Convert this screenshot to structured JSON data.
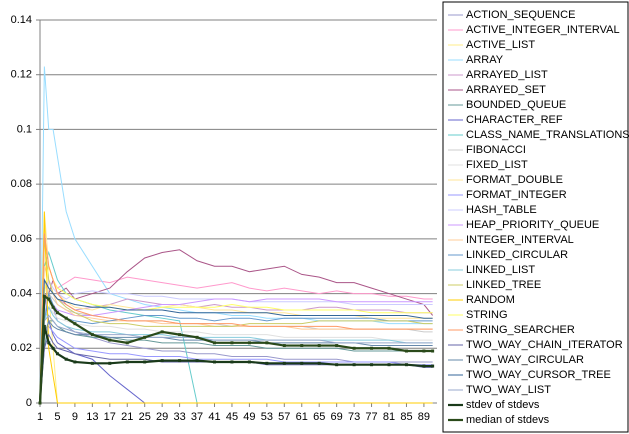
{
  "chart_data": {
    "type": "line",
    "x": [
      1,
      2,
      3,
      4,
      5,
      7,
      9,
      13,
      17,
      21,
      25,
      29,
      33,
      37,
      41,
      45,
      49,
      53,
      57,
      61,
      65,
      69,
      73,
      77,
      81,
      85,
      89,
      91
    ],
    "xlim": [
      1,
      92
    ],
    "xticks": [
      1,
      5,
      9,
      13,
      17,
      21,
      25,
      29,
      33,
      37,
      41,
      45,
      49,
      53,
      57,
      61,
      65,
      69,
      73,
      77,
      81,
      85,
      89
    ],
    "ylim": [
      0,
      0.14
    ],
    "yticks": [
      0,
      0.02,
      0.04,
      0.06,
      0.08,
      0.1,
      0.12,
      0.14
    ],
    "grid": true,
    "legend": "right",
    "series": [
      {
        "name": "ACTION_SEQUENCE",
        "color": "#9999cc",
        "values": [
          0,
          0.03,
          0.04,
          0.035,
          0.03,
          0.028,
          0.026,
          0.024,
          0.022,
          0.021,
          0.02,
          0.019,
          0.019,
          0.018,
          0.018,
          0.017,
          0.017,
          0.017,
          0.016,
          0.016,
          0.016,
          0.016,
          0.015,
          0.015,
          0.015,
          0.015,
          0.015,
          0.015
        ]
      },
      {
        "name": "ACTIVE_INTEGER_INTERVAL",
        "color": "#ff99cc",
        "values": [
          0,
          0.04,
          0.05,
          0.045,
          0.042,
          0.044,
          0.046,
          0.045,
          0.044,
          0.046,
          0.045,
          0.044,
          0.043,
          0.042,
          0.043,
          0.044,
          0.042,
          0.041,
          0.042,
          0.041,
          0.04,
          0.041,
          0.04,
          0.04,
          0.039,
          0.039,
          0.038,
          0.038
        ]
      },
      {
        "name": "ACTIVE_LIST",
        "color": "#ffee88",
        "values": [
          0,
          0.06,
          0.04,
          0.02,
          0,
          0,
          0,
          0,
          0,
          0,
          0,
          0,
          0,
          0,
          0,
          0,
          0,
          0,
          0,
          0,
          0,
          0,
          0,
          0,
          0,
          0,
          0,
          0
        ]
      },
      {
        "name": "ARRAY",
        "color": "#99ddff",
        "values": [
          0,
          0.123,
          0.1,
          0.1,
          0.09,
          0.07,
          0.06,
          0.05,
          0.04,
          0.038,
          0.036,
          0.035,
          0.034,
          0.033,
          0.033,
          0.032,
          0.032,
          0.031,
          0.031,
          0.031,
          0.03,
          0.03,
          0.03,
          0.03,
          0.029,
          0.029,
          0.029,
          0.029
        ]
      },
      {
        "name": "ARRAYED_LIST",
        "color": "#cc99cc",
        "values": [
          0,
          0.035,
          0.045,
          0.04,
          0.038,
          0.036,
          0.034,
          0.035,
          0.036,
          0.038,
          0.037,
          0.036,
          0.036,
          0.035,
          0.036,
          0.035,
          0.035,
          0.034,
          0.034,
          0.034,
          0.035,
          0.035,
          0.034,
          0.034,
          0.034,
          0.033,
          0.033,
          0.033
        ]
      },
      {
        "name": "ARRAYED_SET",
        "color": "#aa5588",
        "values": [
          0,
          0.03,
          0.04,
          0.045,
          0.04,
          0.042,
          0.038,
          0.04,
          0.042,
          0.048,
          0.053,
          0.055,
          0.056,
          0.052,
          0.05,
          0.05,
          0.048,
          0.049,
          0.05,
          0.047,
          0.046,
          0.044,
          0.044,
          0.042,
          0.04,
          0.038,
          0.036,
          0.032
        ]
      },
      {
        "name": "BOUNDED_QUEUE",
        "color": "#669999",
        "values": [
          0,
          0.02,
          0.03,
          0.03,
          0.028,
          0.026,
          0.025,
          0.024,
          0.024,
          0.023,
          0.023,
          0.022,
          0.022,
          0.022,
          0.021,
          0.021,
          0.021,
          0.02,
          0.02,
          0.02,
          0.02,
          0.02,
          0.019,
          0.019,
          0.019,
          0.019,
          0.019,
          0.019
        ]
      },
      {
        "name": "CHARACTER_REF",
        "color": "#6666cc",
        "values": [
          0,
          0.04,
          0.03,
          0.025,
          0.022,
          0.02,
          0.018,
          0.016,
          0.01,
          0.005,
          0,
          0,
          0,
          0,
          0,
          0,
          0,
          0,
          0,
          0,
          0,
          0,
          0,
          0,
          0,
          0,
          0,
          0
        ]
      },
      {
        "name": "CLASS_NAME_TRANSLATIONS",
        "color": "#66cccc",
        "values": [
          0,
          0.05,
          0.055,
          0.05,
          0.045,
          0.04,
          0.038,
          0.036,
          0.034,
          0.033,
          0.032,
          0.031,
          0.03,
          0,
          0,
          0,
          0,
          0,
          0,
          0,
          0,
          0,
          0,
          0,
          0,
          0,
          0,
          0
        ]
      },
      {
        "name": "FIBONACCI",
        "color": "#cccccc",
        "values": [
          0,
          0.045,
          0.04,
          0.038,
          0.036,
          0.034,
          0.033,
          0.032,
          0.031,
          0.03,
          0.03,
          0.03,
          0.029,
          0.029,
          0.029,
          0.028,
          0.028,
          0.028,
          0.028,
          0.028,
          0.027,
          0.027,
          0.027,
          0.027,
          0.027,
          0.027,
          0.026,
          0.026
        ]
      },
      {
        "name": "FIXED_LIST",
        "color": "#e0e0e0",
        "values": [
          0,
          0.03,
          0.035,
          0.033,
          0.031,
          0.03,
          0.029,
          0.028,
          0.028,
          0.027,
          0.027,
          0.026,
          0.026,
          0.026,
          0.025,
          0.025,
          0.025,
          0.025,
          0.024,
          0.024,
          0.024,
          0.024,
          0.024,
          0.024,
          0.023,
          0.023,
          0.023,
          0.023
        ]
      },
      {
        "name": "FORMAT_DOUBLE",
        "color": "#ffe699",
        "values": [
          0,
          0.07,
          0.05,
          0.045,
          0.04,
          0.037,
          0.035,
          0.034,
          0.036,
          0.035,
          0.034,
          0.035,
          0.036,
          0.035,
          0.034,
          0.034,
          0.033,
          0.033,
          0.033,
          0.032,
          0.032,
          0.032,
          0.032,
          0.031,
          0.031,
          0.031,
          0.031,
          0.031
        ]
      },
      {
        "name": "FORMAT_INTEGER",
        "color": "#9999ff",
        "values": [
          0,
          0.025,
          0.028,
          0.026,
          0.024,
          0.022,
          0.02,
          0.019,
          0.018,
          0.018,
          0.017,
          0.017,
          0.017,
          0.016,
          0.016,
          0.016,
          0.016,
          0.016,
          0.015,
          0.015,
          0.015,
          0.015,
          0.015,
          0.015,
          0.015,
          0.014,
          0.014,
          0.014
        ]
      },
      {
        "name": "HASH_TABLE",
        "color": "#ccccff",
        "values": [
          0,
          0.03,
          0.045,
          0.042,
          0.04,
          0.038,
          0.04,
          0.041,
          0.04,
          0.04,
          0.039,
          0.039,
          0.038,
          0.038,
          0.038,
          0.038,
          0.037,
          0.037,
          0.037,
          0.037,
          0.037,
          0.037,
          0.036,
          0.036,
          0.036,
          0.036,
          0.036,
          0.036
        ]
      },
      {
        "name": "HEAP_PRIORITY_QUEUE",
        "color": "#cc99ff",
        "values": [
          0,
          0.04,
          0.038,
          0.036,
          0.034,
          0.033,
          0.032,
          0.032,
          0.033,
          0.034,
          0.035,
          0.036,
          0.036,
          0.037,
          0.038,
          0.038,
          0.037,
          0.038,
          0.038,
          0.038,
          0.038,
          0.037,
          0.037,
          0.037,
          0.037,
          0.037,
          0.037,
          0.037
        ]
      },
      {
        "name": "INTEGER_INTERVAL",
        "color": "#ffcc99",
        "values": [
          0,
          0.05,
          0.045,
          0.04,
          0.036,
          0.034,
          0.032,
          0.031,
          0.03,
          0.03,
          0.03,
          0.029,
          0.029,
          0.029,
          0.028,
          0.028,
          0.028,
          0.028,
          0.028,
          0.027,
          0.027,
          0.027,
          0.027,
          0.027,
          0.027,
          0.027,
          0.027,
          0.027
        ]
      },
      {
        "name": "LINKED_CIRCULAR",
        "color": "#6699cc",
        "values": [
          0,
          0.03,
          0.04,
          0.036,
          0.033,
          0.031,
          0.03,
          0.029,
          0.03,
          0.031,
          0.032,
          0.032,
          0.031,
          0.031,
          0.03,
          0.031,
          0.031,
          0.03,
          0.031,
          0.031,
          0.031,
          0.031,
          0.031,
          0.031,
          0.03,
          0.03,
          0.03,
          0.03
        ]
      },
      {
        "name": "LINKED_LIST",
        "color": "#88ccdd",
        "values": [
          0,
          0.03,
          0.035,
          0.032,
          0.03,
          0.028,
          0.027,
          0.026,
          0.026,
          0.025,
          0.025,
          0.025,
          0.024,
          0.024,
          0.024,
          0.024,
          0.024,
          0.023,
          0.023,
          0.023,
          0.023,
          0.023,
          0.023,
          0.023,
          0.023,
          0.022,
          0.022,
          0.022
        ]
      },
      {
        "name": "LINKED_TREE",
        "color": "#cccc66",
        "values": [
          0,
          0.06,
          0.045,
          0.04,
          0.038,
          0.035,
          0.033,
          0.03,
          0.029,
          0.029,
          0.028,
          0.028,
          0.028,
          0.028,
          0.028,
          0.028,
          0.029,
          0.029,
          0.029,
          0.029,
          0.03,
          0.03,
          0.03,
          0.03,
          0.03,
          0.03,
          0.029,
          0.029
        ]
      },
      {
        "name": "RANDOM",
        "color": "#ffcc00",
        "values": [
          0,
          0.07,
          0.02,
          0.01,
          0,
          0,
          0,
          0,
          0,
          0,
          0,
          0,
          0,
          0,
          0,
          0,
          0,
          0,
          0,
          0,
          0,
          0,
          0,
          0,
          0,
          0,
          0,
          0
        ]
      },
      {
        "name": "STRING",
        "color": "#ffff66",
        "values": [
          0,
          0.04,
          0.05,
          0.045,
          0.042,
          0.04,
          0.038,
          0.036,
          0.035,
          0.034,
          0.034,
          0.035,
          0.035,
          0.035,
          0.035,
          0.036,
          0.035,
          0.035,
          0.034,
          0.034,
          0.034,
          0.034,
          0.034,
          0.033,
          0.033,
          0.033,
          0.033,
          0.033
        ]
      },
      {
        "name": "STRING_SEARCHER",
        "color": "#ff9966",
        "values": [
          0,
          0.062,
          0.05,
          0.045,
          0.04,
          0.036,
          0.034,
          0.032,
          0.031,
          0.03,
          0.03,
          0.03,
          0.029,
          0.029,
          0.029,
          0.029,
          0.028,
          0.028,
          0.028,
          0.028,
          0.028,
          0.028,
          0.027,
          0.027,
          0.027,
          0.027,
          0.027,
          0.027
        ]
      },
      {
        "name": "TWO_WAY_CHAIN_ITERATOR",
        "color": "#6666aa",
        "values": [
          0,
          0.02,
          0.025,
          0.022,
          0.02,
          0.019,
          0.018,
          0.017,
          0.016,
          0.016,
          0.016,
          0.015,
          0.015,
          0.015,
          0.015,
          0.015,
          0.015,
          0.014,
          0.014,
          0.014,
          0.014,
          0.014,
          0.014,
          0.014,
          0.014,
          0.014,
          0.013,
          0.013
        ]
      },
      {
        "name": "TWO_WAY_CIRCULAR",
        "color": "#6688aa",
        "values": [
          0,
          0.025,
          0.03,
          0.028,
          0.027,
          0.026,
          0.025,
          0.025,
          0.024,
          0.024,
          0.024,
          0.024,
          0.023,
          0.023,
          0.023,
          0.023,
          0.023,
          0.022,
          0.022,
          0.022,
          0.022,
          0.022,
          0.022,
          0.021,
          0.021,
          0.021,
          0.021,
          0.021
        ]
      },
      {
        "name": "TWO_WAY_CURSOR_TREE",
        "color": "#336699",
        "values": [
          0,
          0.045,
          0.042,
          0.04,
          0.038,
          0.037,
          0.036,
          0.035,
          0.035,
          0.034,
          0.034,
          0.034,
          0.033,
          0.033,
          0.033,
          0.033,
          0.033,
          0.033,
          0.032,
          0.032,
          0.032,
          0.032,
          0.032,
          0.032,
          0.032,
          0.032,
          0.031,
          0.031
        ]
      },
      {
        "name": "TWO_WAY_LIST",
        "color": "#99aacc",
        "values": [
          0,
          0.03,
          0.032,
          0.03,
          0.028,
          0.027,
          0.026,
          0.025,
          0.025,
          0.025,
          0.024,
          0.024,
          0.024,
          0.024,
          0.023,
          0.023,
          0.023,
          0.023,
          0.023,
          0.023,
          0.023,
          0.022,
          0.022,
          0.022,
          0.022,
          0.022,
          0.022,
          0.022
        ]
      },
      {
        "name": "stdev of stdevs",
        "color": "#1a3a1a",
        "values": [
          0,
          0.028,
          0.022,
          0.02,
          0.018,
          0.016,
          0.015,
          0.0145,
          0.0145,
          0.015,
          0.015,
          0.0155,
          0.0155,
          0.0155,
          0.015,
          0.015,
          0.015,
          0.0145,
          0.0145,
          0.0145,
          0.0145,
          0.014,
          0.014,
          0.014,
          0.014,
          0.014,
          0.0135,
          0.0135
        ]
      },
      {
        "name": "median of stdevs",
        "color": "#2a4a1a",
        "values": [
          0,
          0.039,
          0.038,
          0.035,
          0.033,
          0.031,
          0.029,
          0.025,
          0.023,
          0.022,
          0.024,
          0.026,
          0.025,
          0.024,
          0.022,
          0.022,
          0.022,
          0.022,
          0.021,
          0.021,
          0.021,
          0.021,
          0.02,
          0.02,
          0.02,
          0.019,
          0.019,
          0.019
        ]
      }
    ]
  }
}
